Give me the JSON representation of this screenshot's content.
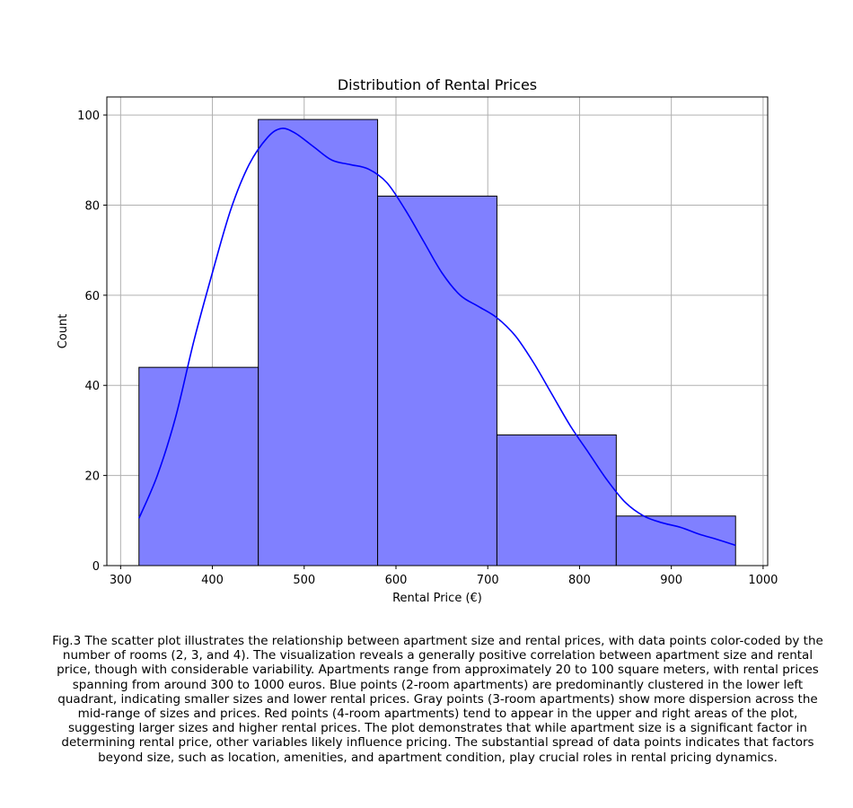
{
  "chart_data": {
    "type": "histogram",
    "title": "Distribution of Rental Prices",
    "xlabel": "Rental Price (€)",
    "ylabel": "Count",
    "xlim": [
      285,
      1005
    ],
    "ylim": [
      0,
      104
    ],
    "xticks": [
      300,
      400,
      500,
      600,
      700,
      800,
      900,
      1000
    ],
    "yticks": [
      0,
      20,
      40,
      60,
      80,
      100
    ],
    "grid": true,
    "bar_color": "#8080ff",
    "bar_edge_color": "#000000",
    "kde_color": "#0000ff",
    "bins": [
      {
        "x0": 320,
        "x1": 450,
        "count": 44
      },
      {
        "x0": 450,
        "x1": 580,
        "count": 99
      },
      {
        "x0": 580,
        "x1": 710,
        "count": 82
      },
      {
        "x0": 710,
        "x1": 840,
        "count": 29
      },
      {
        "x0": 840,
        "x1": 970,
        "count": 11
      }
    ],
    "kde": {
      "x": [
        320,
        340,
        360,
        380,
        400,
        420,
        440,
        460,
        475,
        490,
        510,
        530,
        550,
        570,
        590,
        610,
        630,
        650,
        670,
        690,
        710,
        730,
        750,
        770,
        790,
        810,
        830,
        850,
        870,
        890,
        910,
        930,
        950,
        970
      ],
      "y": [
        10.5,
        20,
        33,
        50,
        65,
        79,
        89,
        95,
        97,
        96,
        93,
        90,
        89,
        88,
        85,
        79,
        72,
        65,
        60,
        57.5,
        55,
        51,
        45,
        38,
        31,
        25,
        19,
        14,
        11,
        9.5,
        8.5,
        7,
        5.8,
        4.5
      ]
    }
  },
  "caption": "Fig.3 The scatter plot illustrates the relationship between apartment size and rental prices, with data points color-coded by the number of rooms (2, 3, and 4). The visualization reveals a generally positive correlation between apartment size and rental price, though with considerable variability. Apartments range from approximately 20 to 100 square meters, with rental prices spanning from around 300 to 1000 euros. Blue points (2-room apartments) are predominantly clustered in the lower left quadrant, indicating smaller sizes and lower rental prices. Gray points (3-room apartments) show more dispersion across the mid-range of sizes and prices. Red points (4-room apartments) tend to appear in the upper and right areas of the plot, suggesting larger sizes and higher rental prices. The plot demonstrates that while apartment size is a significant factor in determining rental price, other variables likely influence pricing. The substantial spread of data points indicates that factors beyond size, such as location, amenities, and apartment condition, play crucial roles in rental pricing dynamics."
}
